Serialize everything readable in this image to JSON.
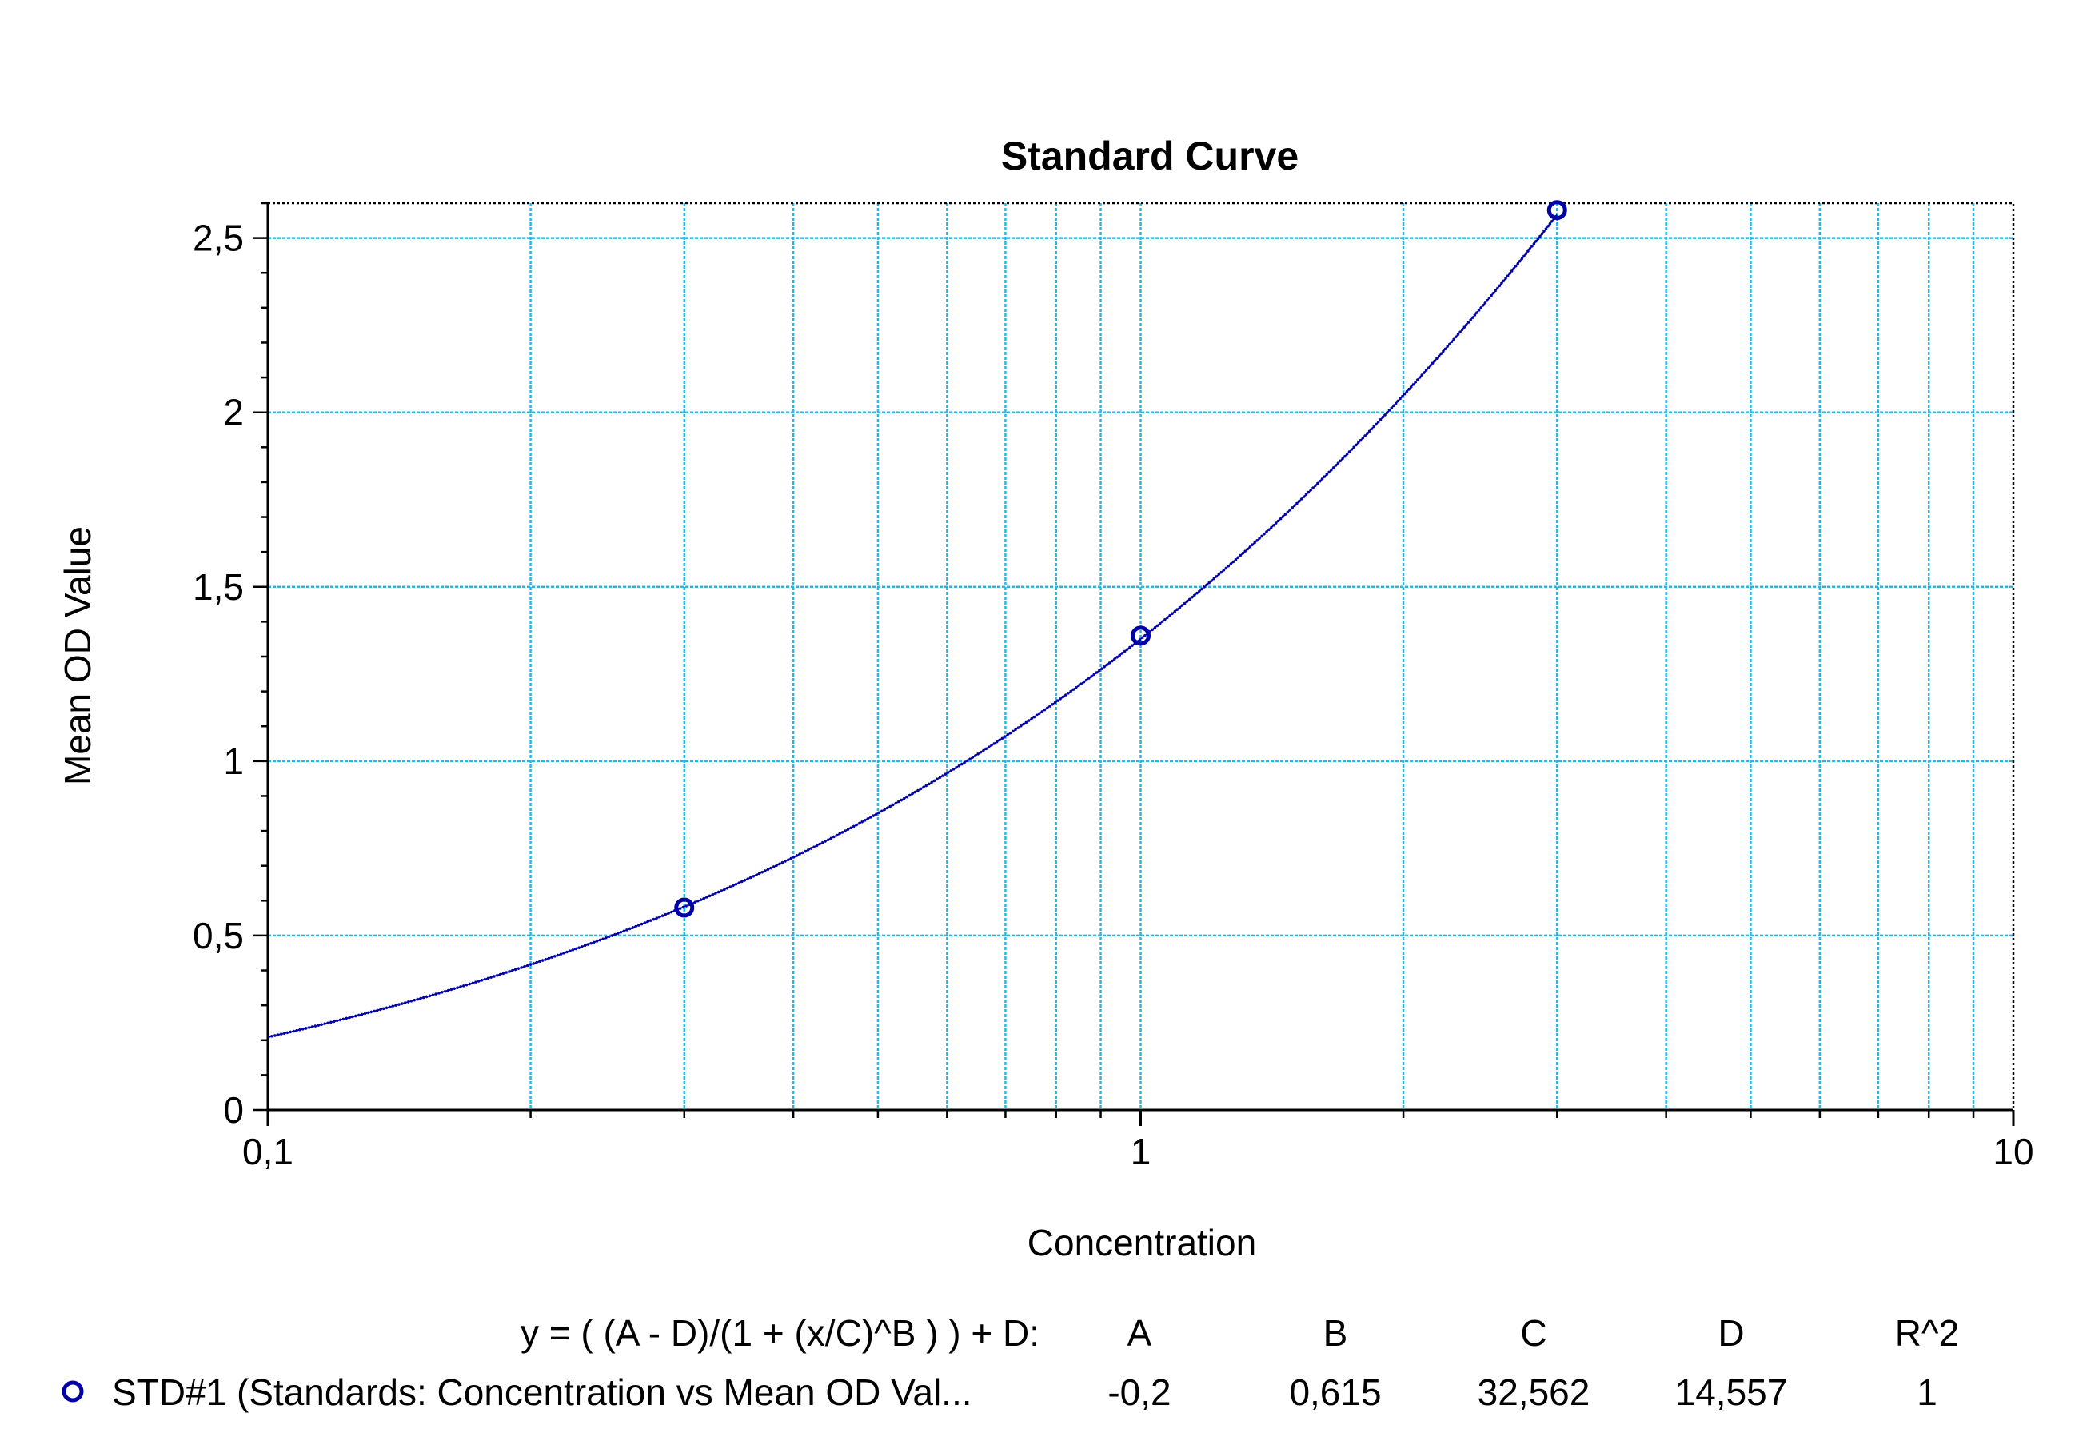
{
  "chart_data": {
    "type": "scatter",
    "title": "Standard Curve",
    "xlabel": "Concentration",
    "ylabel": "Mean OD Value",
    "x_scale": "log",
    "xlim": [
      0.1,
      10
    ],
    "ylim": [
      0,
      2.6
    ],
    "x_ticks": [
      {
        "value": 0.1,
        "label": "0,1"
      },
      {
        "value": 1,
        "label": "1"
      },
      {
        "value": 10,
        "label": "10"
      }
    ],
    "y_ticks": [
      {
        "value": 0,
        "label": "0"
      },
      {
        "value": 0.5,
        "label": "0,5"
      },
      {
        "value": 1,
        "label": "1"
      },
      {
        "value": 1.5,
        "label": "1,5"
      },
      {
        "value": 2,
        "label": "2"
      },
      {
        "value": 2.5,
        "label": "2,5"
      }
    ],
    "grid": true,
    "series": [
      {
        "name": "STD#1 (Standards: Concentration vs Mean OD Val...",
        "color": "#0000aa",
        "points": [
          {
            "x": 0.3,
            "y": 0.58
          },
          {
            "x": 1,
            "y": 1.36
          },
          {
            "x": 3,
            "y": 2.58
          }
        ],
        "fit": {
          "model": "4PL",
          "A": -0.2,
          "B": 0.615,
          "C": 32.562,
          "D": 14.557
        }
      }
    ],
    "legend": {
      "placement": "bottom",
      "equation": "y = ( (A - D)/(1 + (x/C)^B ) ) + D:",
      "headers": [
        "A",
        "B",
        "C",
        "D",
        "R^2"
      ],
      "rows": [
        {
          "name": "STD#1 (Standards: Concentration vs Mean OD Val...",
          "values": [
            "-0,2",
            "0,615",
            "32,562",
            "14,557",
            "1"
          ]
        }
      ]
    },
    "colors": {
      "grid": "#29b6e3",
      "series": "#0000aa",
      "axis": "#000000"
    }
  }
}
